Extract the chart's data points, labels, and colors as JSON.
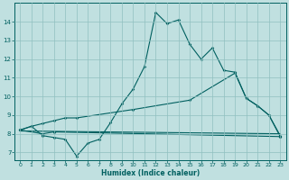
{
  "xlabel": "Humidex (Indice chaleur)",
  "bg_color": "#c0e0e0",
  "line_color": "#006060",
  "grid_color": "#90c0c0",
  "xlim": [
    -0.5,
    23.5
  ],
  "ylim": [
    6.6,
    15.0
  ],
  "yticks": [
    7,
    8,
    9,
    10,
    11,
    12,
    13,
    14
  ],
  "xticks": [
    0,
    1,
    2,
    3,
    4,
    5,
    6,
    7,
    8,
    9,
    10,
    11,
    12,
    13,
    14,
    15,
    16,
    17,
    18,
    19,
    20,
    21,
    22,
    23
  ],
  "line1_x": [
    0,
    1,
    2,
    3,
    4,
    5,
    6,
    7,
    8,
    9,
    10,
    11,
    12,
    13,
    14,
    15,
    16,
    17,
    18,
    19,
    20,
    21,
    22,
    23
  ],
  "line1_y": [
    8.2,
    8.4,
    7.9,
    7.8,
    7.7,
    6.8,
    7.5,
    7.7,
    8.6,
    9.6,
    10.4,
    11.6,
    14.5,
    13.9,
    14.1,
    12.8,
    12.0,
    12.6,
    11.4,
    11.3,
    9.9,
    9.5,
    9.0,
    7.9
  ],
  "line2_x": [
    0,
    2,
    3,
    23
  ],
  "line2_y": [
    8.2,
    8.0,
    8.1,
    7.85
  ],
  "line3_x": [
    0,
    23
  ],
  "line3_y": [
    8.15,
    8.0
  ],
  "line4_x": [
    0,
    1,
    2,
    3,
    4,
    5,
    10,
    15,
    19,
    20,
    21,
    22,
    23
  ],
  "line4_y": [
    8.2,
    8.4,
    8.55,
    8.7,
    8.85,
    8.85,
    9.3,
    9.8,
    11.25,
    9.9,
    9.5,
    9.0,
    7.85
  ]
}
